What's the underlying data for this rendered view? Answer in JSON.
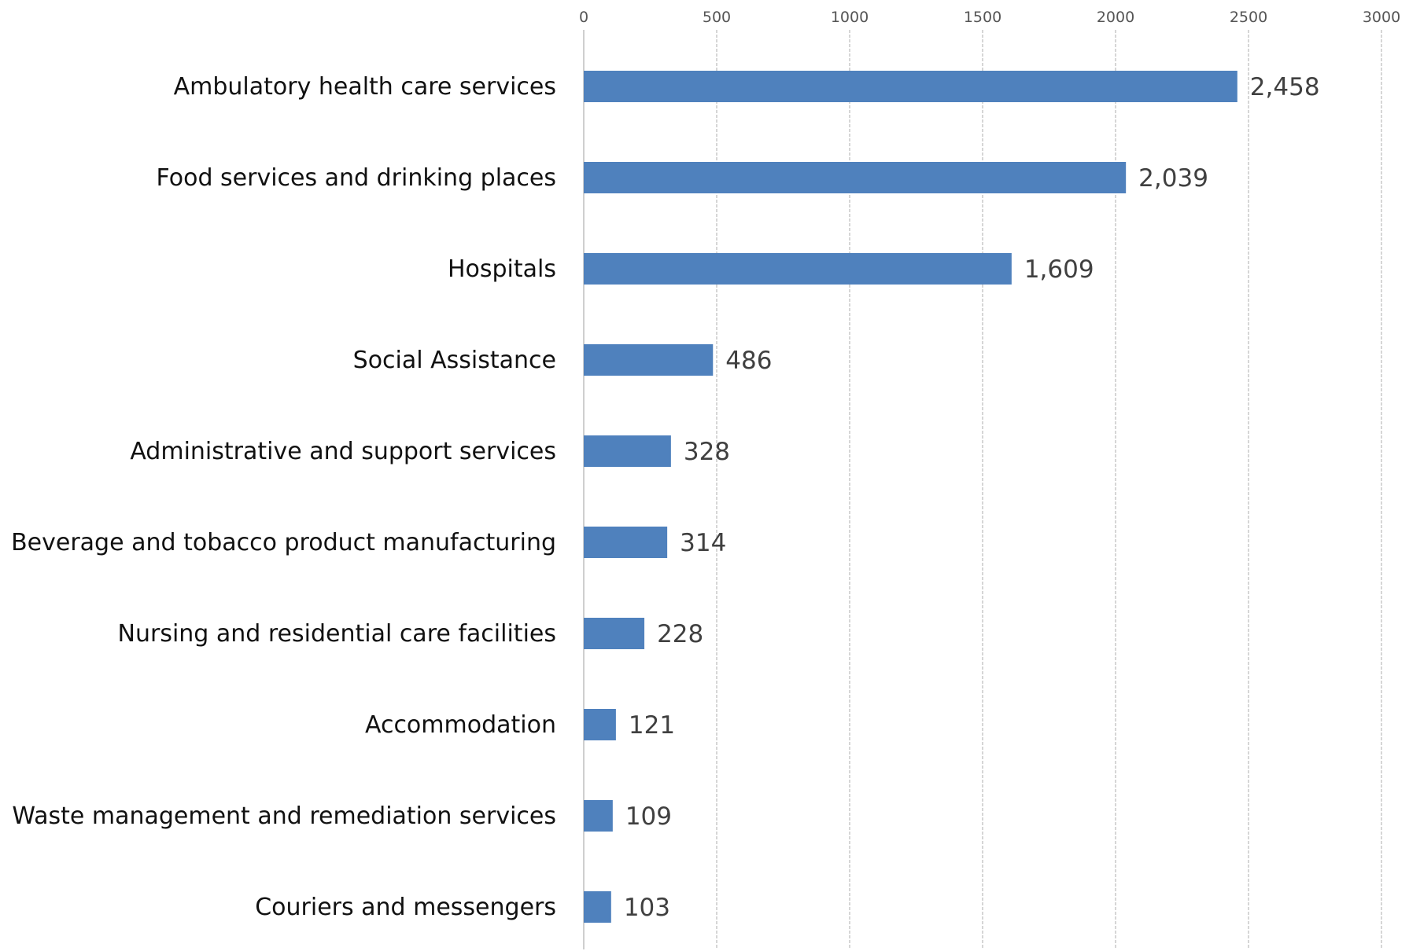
{
  "chart_data": {
    "type": "bar",
    "orientation": "horizontal",
    "title": "",
    "xlabel": "",
    "ylabel": "",
    "categories": [
      "Ambulatory health care services",
      "Food services and drinking places",
      "Hospitals",
      "Social Assistance",
      "Administrative and support services",
      "Beverage and tobacco product manufacturing",
      "Nursing and residential care facilities",
      "Accommodation",
      "Waste management and remediation services",
      "Couriers and messengers"
    ],
    "values": [
      2458,
      2039,
      1609,
      486,
      328,
      314,
      228,
      121,
      109,
      103
    ],
    "value_labels": [
      "2,458",
      "2,039",
      "1,609",
      "486",
      "328",
      "314",
      "228",
      "121",
      "109",
      "103"
    ],
    "xlim": [
      0,
      3000
    ],
    "xticks": [
      0,
      500,
      1000,
      1500,
      2000,
      2500,
      3000
    ],
    "tick_labels": [
      "0",
      "500",
      "1000",
      "1500",
      "2000",
      "2500",
      "3000"
    ],
    "axis_position": "top",
    "grid": true,
    "legend": "none",
    "bar_color": "#4f81bd"
  }
}
